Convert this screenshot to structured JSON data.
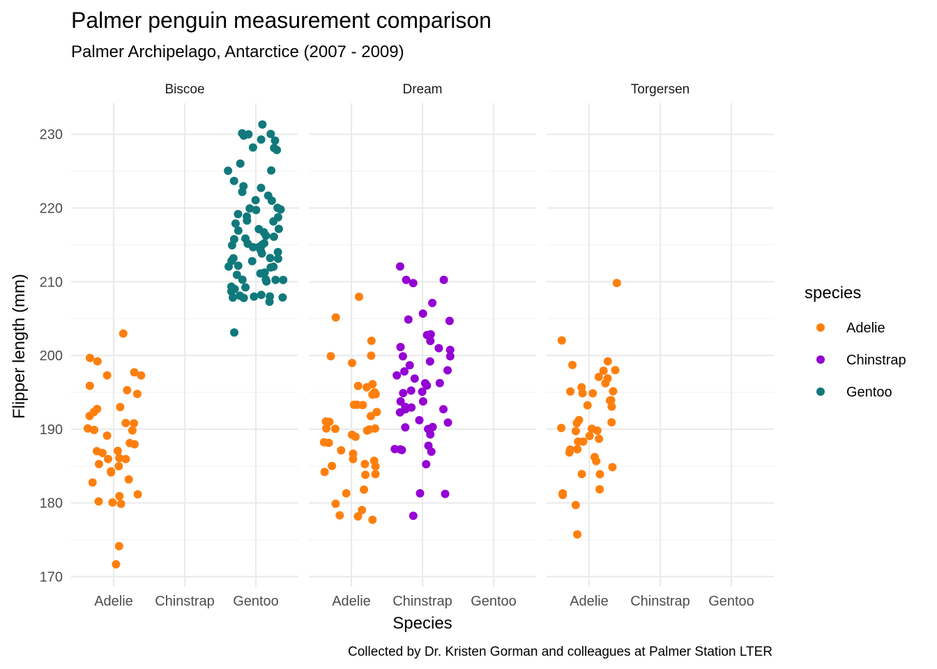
{
  "chart_data": {
    "type": "scatter",
    "title": "Palmer penguin measurement comparison",
    "subtitle": "Palmer Archipelago, Antarctice (2007 - 2009)",
    "xlabel": "Species",
    "ylabel": "Flipper length (mm)",
    "caption": "Collected by Dr. Kristen Gorman and colleagues at Palmer Station LTER",
    "jitter": true,
    "ylim": [
      169,
      232
    ],
    "y_ticks": [
      170,
      180,
      190,
      200,
      210,
      220,
      230
    ],
    "categories": [
      "Adelie",
      "Chinstrap",
      "Gentoo"
    ],
    "grid": true,
    "legend": {
      "title": "species",
      "position": "right",
      "entries": [
        {
          "name": "Adelie",
          "color": "#ff7f0e"
        },
        {
          "name": "Chinstrap",
          "color": "#9400d3"
        },
        {
          "name": "Gentoo",
          "color": "#11797b"
        }
      ]
    },
    "facets": [
      {
        "name": "Biscoe",
        "series": [
          {
            "name": "Adelie",
            "values": [
              174,
              172,
              203,
              198,
              200,
              199,
              197,
              197,
              196,
              195,
              195,
              193,
              193,
              192,
              192,
              191,
              191,
              190,
              190,
              190,
              189,
              188,
              188,
              187,
              187,
              187,
              186,
              186,
              186,
              185,
              185,
              184,
              184,
              183,
              183,
              181,
              181,
              180,
              180,
              180
            ]
          },
          {
            "name": "Gentoo",
            "values": [
              231,
              230,
              230,
              230,
              230,
              229,
              229,
              228,
              228,
              228,
              226,
              225,
              225,
              224,
              223,
              223,
              222,
              222,
              221,
              221,
              220,
              220,
              220,
              220,
              219,
              219,
              219,
              218,
              218,
              218,
              217,
              217,
              217,
              217,
              216,
              216,
              216,
              216,
              215,
              215,
              215,
              215,
              215,
              215,
              214,
              214,
              214,
              213,
              213,
              213,
              213,
              213,
              212,
              212,
              212,
              212,
              211,
              211,
              211,
              210,
              210,
              210,
              210,
              210,
              209,
              209,
              209,
              209,
              208,
              208,
              208,
              208,
              208,
              208,
              208,
              207,
              203
            ]
          }
        ]
      },
      {
        "name": "Dream",
        "series": [
          {
            "name": "Adelie",
            "values": [
              205,
              208,
              200,
              202,
              200,
              199,
              196,
              196,
              196,
              195,
              195,
              195,
              193,
              193,
              193,
              192,
              192,
              191,
              191,
              190,
              190,
              190,
              190,
              190,
              189,
              189,
              188,
              188,
              187,
              187,
              186,
              186,
              185,
              185,
              185,
              184,
              184,
              184,
              182,
              181,
              180,
              179,
              178,
              178,
              178
            ]
          },
          {
            "name": "Chinstrap",
            "values": [
              212,
              210,
              210,
              210,
              207,
              206,
              205,
              205,
              203,
              203,
              202,
              201,
              201,
              201,
              200,
              200,
              199,
              199,
              198,
              198,
              197,
              197,
              196,
              196,
              196,
              195,
              195,
              195,
              194,
              194,
              193,
              193,
              193,
              193,
              192,
              191,
              191,
              190,
              190,
              190,
              189,
              188,
              187,
              187,
              187,
              187,
              185,
              181,
              181,
              178
            ]
          }
        ]
      },
      {
        "name": "Torgersen",
        "series": [
          {
            "name": "Adelie",
            "values": [
              210,
              202,
              199,
              199,
              198,
              198,
              197,
              197,
              196,
              196,
              195,
              195,
              195,
              195,
              194,
              194,
              193,
              193,
              191,
              191,
              191,
              190,
              190,
              190,
              190,
              189,
              189,
              188,
              188,
              187,
              187,
              187,
              186,
              186,
              185,
              184,
              184,
              182,
              181,
              181,
              180,
              176
            ]
          }
        ]
      }
    ]
  }
}
